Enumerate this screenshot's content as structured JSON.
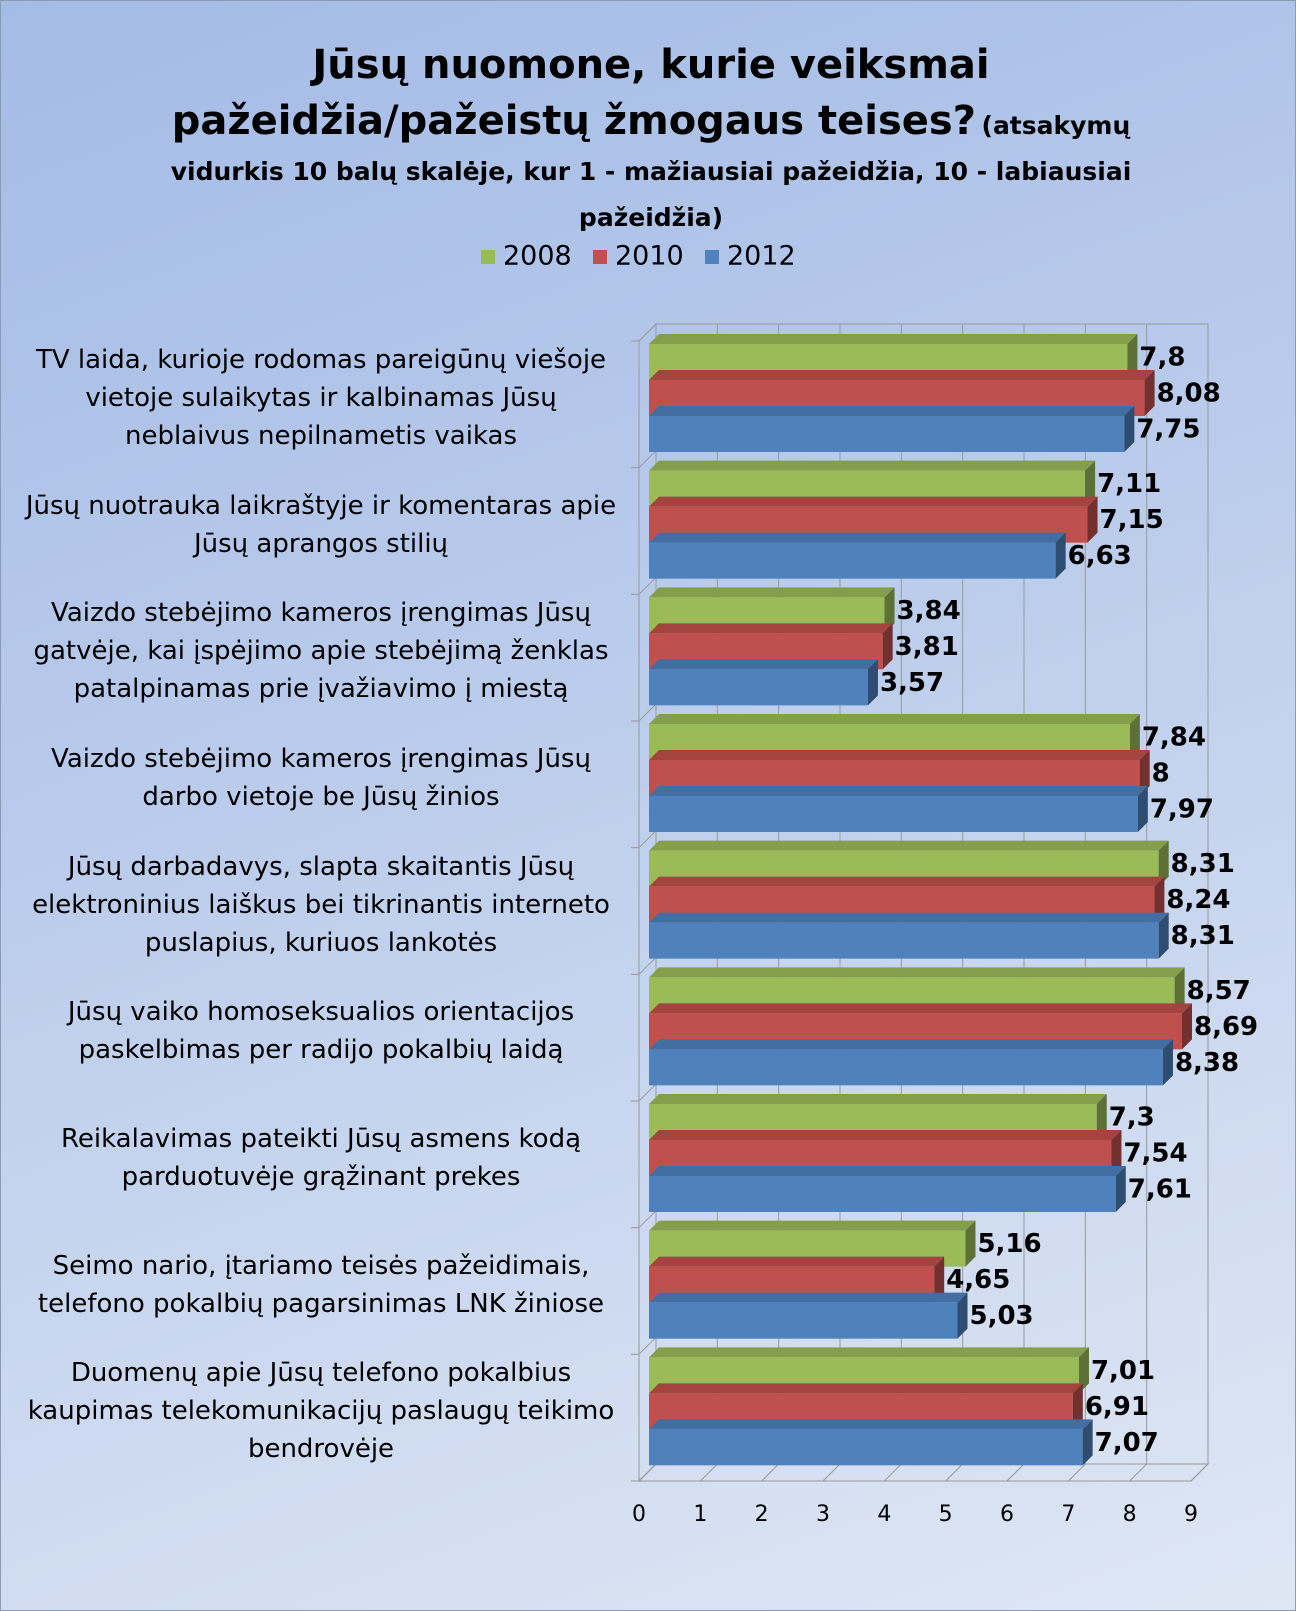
{
  "chart_data": {
    "type": "bar3d_horizontal",
    "title": "Jūsų nuomone, kurie veiksmai pažeidžia/pažeistų žmogaus teises?",
    "subtitle": "(atsakymų vidurkis 10 balų skalėje, kur 1 - mažiausiai pažeidžia, 10 - labiausiai pažeidžia)",
    "categories": [
      "TV laida, kurioje rodomas pareigūnų viešoje vietoje sulaikytas ir kalbinamas Jūsų neblaivus nepilnametis vaikas",
      "Jūsų nuotrauka laikraštyje ir komentaras apie Jūsų aprangos stilių",
      "Vaizdo stebėjimo kameros įrengimas Jūsų gatvėje, kai įspėjimo apie stebėjimą ženklas patalpinamas prie įvažiavimo į miestą",
      "Vaizdo stebėjimo kameros įrengimas Jūsų darbo vietoje be Jūsų žinios",
      "Jūsų darbadavys, slapta skaitantis Jūsų elektroninius laiškus bei tikrinantis interneto puslapius, kuriuos lankotės",
      "Jūsų vaiko homoseksualios orientacijos paskelbimas per radijo pokalbių laidą",
      "Reikalavimas pateikti Jūsų asmens kodą parduotuvėje grąžinant prekes",
      "Seimo nario, įtariamo teisės pažeidimais, telefono pokalbių pagarsinimas LNK žiniose",
      "Duomenų apie Jūsų telefono pokalbius kaupimas telekomunikacijų paslaugų teikimo bendrovėje"
    ],
    "series": [
      {
        "name": "2008",
        "color": "#9bbb59",
        "values": [
          7.8,
          7.11,
          3.84,
          7.84,
          8.31,
          8.57,
          7.3,
          5.16,
          7.01
        ],
        "value_labels": [
          "7,8",
          "7,11",
          "3,84",
          "7,84",
          "8,31",
          "8,57",
          "7,3",
          "5,16",
          "7,01"
        ]
      },
      {
        "name": "2010",
        "color": "#c0504d",
        "values": [
          8.08,
          7.15,
          3.81,
          8,
          8.24,
          8.69,
          7.54,
          4.65,
          6.91
        ],
        "value_labels": [
          "8,08",
          "7,15",
          "3,81",
          "8",
          "8,24",
          "8,69",
          "7,54",
          "4,65",
          "6,91"
        ]
      },
      {
        "name": "2012",
        "color": "#4f81bd",
        "values": [
          7.75,
          6.63,
          3.57,
          7.97,
          8.31,
          8.38,
          7.61,
          5.03,
          7.07
        ],
        "value_labels": [
          "7,75",
          "6,63",
          "3,57",
          "7,97",
          "8,31",
          "8,38",
          "7,61",
          "5,03",
          "7,07"
        ]
      }
    ],
    "xlim": [
      0,
      9
    ],
    "xticks": [
      0,
      1,
      2,
      3,
      4,
      5,
      6,
      7,
      8,
      9
    ],
    "grid": true,
    "legend": "top"
  }
}
